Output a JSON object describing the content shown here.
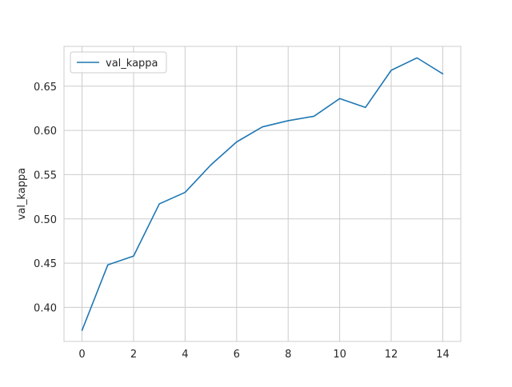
{
  "chart_data": {
    "type": "line",
    "title": "",
    "xlabel": "",
    "ylabel": "val_kappa",
    "xlim": [
      -0.7,
      14.7
    ],
    "ylim": [
      0.3615,
      0.695
    ],
    "xticks": [
      0,
      2,
      4,
      6,
      8,
      10,
      12,
      14
    ],
    "yticks": [
      0.4,
      0.45,
      0.5,
      0.55,
      0.6,
      0.65
    ],
    "xtick_labels": [
      "0",
      "2",
      "4",
      "6",
      "8",
      "10",
      "12",
      "14"
    ],
    "ytick_labels": [
      "0.40",
      "0.45",
      "0.50",
      "0.55",
      "0.60",
      "0.65"
    ],
    "grid": true,
    "legend_position": "upper left",
    "series": [
      {
        "name": "val_kappa",
        "color": "#1f77b4",
        "x": [
          0,
          1,
          2,
          3,
          4,
          5,
          6,
          7,
          8,
          9,
          10,
          11,
          12,
          13,
          14
        ],
        "y": [
          0.374,
          0.448,
          0.458,
          0.517,
          0.53,
          0.561,
          0.587,
          0.604,
          0.611,
          0.616,
          0.636,
          0.626,
          0.668,
          0.682,
          0.664
        ]
      }
    ]
  }
}
